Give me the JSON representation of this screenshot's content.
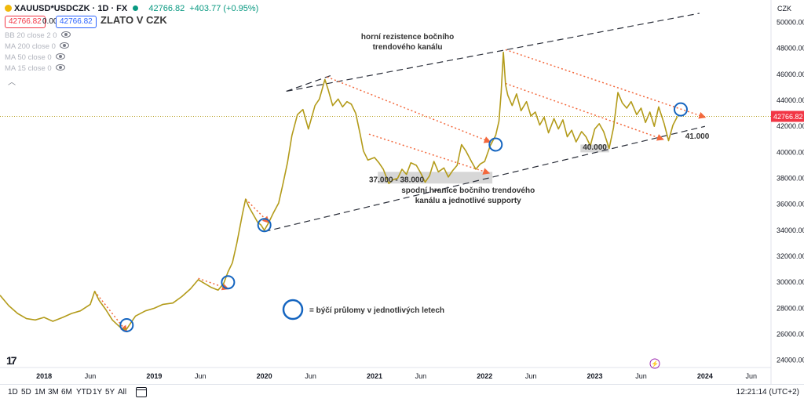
{
  "header": {
    "symbol": "XAUUSD*USDCZK · 1D · FX",
    "last_price": "42766.82",
    "change": "+403.77 (+0.95%)"
  },
  "price_boxes": {
    "sell": "42766.82",
    "spread": "0.00",
    "buy": "42766.82"
  },
  "indicators": [
    {
      "label": "BB 20 close 2 0"
    },
    {
      "label": "MA 200 close 0"
    },
    {
      "label": "MA 50 close 0"
    },
    {
      "label": "MA 15 close 0"
    }
  ],
  "timeframes": [
    "1D",
    "5D",
    "1M",
    "3M",
    "6M",
    "YTD",
    "1Y",
    "5Y",
    "All"
  ],
  "clock": "12:21:14 (UTC+2)",
  "colors": {
    "price_line": "#b39b1a",
    "trend_channel": "#2a2e39",
    "resistance_arrows": "#f3683c",
    "breakout_circles": "#1565c0",
    "support_zone": "#c9c9c9",
    "last_price_marker": "#f23645"
  },
  "icons": [
    "gold-coin-icon",
    "market-open-dot-icon",
    "eye-icon",
    "chevron-up-icon",
    "calendar-icon",
    "tradingview-logo-icon",
    "lightning-icon"
  ],
  "chart_data": {
    "type": "line",
    "title": "ZLATO V CZK",
    "currency_label": "CZK",
    "ylim": [
      23500,
      51000
    ],
    "y_ticks": [
      24000,
      26000,
      28000,
      30000,
      32000,
      34000,
      36000,
      38000,
      40000,
      42000,
      44000,
      46000,
      48000,
      50000
    ],
    "y_tick_labels": [
      "24000.00",
      "26000.00",
      "28000.00",
      "30000.00",
      "32000.00",
      "34000.00",
      "36000.00",
      "38000.00",
      "40000.00",
      "42000.00",
      "44000.00",
      "46000.00",
      "48000.00",
      "50000.00"
    ],
    "last_price_label": "42766.82",
    "last_price": 42766.82,
    "x_tick_labels": [
      "2018",
      "Jun",
      "2019",
      "Jun",
      "2020",
      "Jun",
      "2021",
      "Jun",
      "2022",
      "Jun",
      "2023",
      "Jun",
      "2024",
      "Jun"
    ],
    "x_tick_dates": [
      2018.0,
      2018.42,
      2019.0,
      2019.42,
      2020.0,
      2020.42,
      2021.0,
      2021.42,
      2022.0,
      2022.42,
      2023.0,
      2023.42,
      2024.0,
      2024.42
    ],
    "xlim": [
      2017.6,
      2024.6
    ],
    "series": [
      {
        "points": [
          [
            2017.6,
            29000
          ],
          [
            2017.68,
            28200
          ],
          [
            2017.76,
            27600
          ],
          [
            2017.84,
            27200
          ],
          [
            2017.92,
            27100
          ],
          [
            2018.0,
            27300
          ],
          [
            2018.08,
            27000
          ],
          [
            2018.17,
            27300
          ],
          [
            2018.25,
            27600
          ],
          [
            2018.33,
            27800
          ],
          [
            2018.42,
            28300
          ],
          [
            2018.46,
            29300
          ],
          [
            2018.5,
            28600
          ],
          [
            2018.56,
            27900
          ],
          [
            2018.62,
            27100
          ],
          [
            2018.67,
            26700
          ],
          [
            2018.71,
            26400
          ],
          [
            2018.75,
            26400
          ],
          [
            2018.79,
            26900
          ],
          [
            2018.83,
            27400
          ],
          [
            2018.92,
            27800
          ],
          [
            2019.0,
            28000
          ],
          [
            2019.08,
            28300
          ],
          [
            2019.17,
            28400
          ],
          [
            2019.25,
            28900
          ],
          [
            2019.33,
            29500
          ],
          [
            2019.4,
            30200
          ],
          [
            2019.46,
            29900
          ],
          [
            2019.52,
            29600
          ],
          [
            2019.58,
            29400
          ],
          [
            2019.63,
            29900
          ],
          [
            2019.67,
            30800
          ],
          [
            2019.71,
            31500
          ],
          [
            2019.75,
            33000
          ],
          [
            2019.8,
            35200
          ],
          [
            2019.83,
            36400
          ],
          [
            2019.86,
            35800
          ],
          [
            2019.9,
            35200
          ],
          [
            2019.94,
            34600
          ],
          [
            2019.97,
            34400
          ],
          [
            2020.0,
            34000
          ],
          [
            2020.04,
            34600
          ],
          [
            2020.08,
            35300
          ],
          [
            2020.13,
            36100
          ],
          [
            2020.17,
            37600
          ],
          [
            2020.21,
            39200
          ],
          [
            2020.25,
            41300
          ],
          [
            2020.3,
            42900
          ],
          [
            2020.35,
            43300
          ],
          [
            2020.4,
            41800
          ],
          [
            2020.46,
            43600
          ],
          [
            2020.5,
            44100
          ],
          [
            2020.55,
            45600
          ],
          [
            2020.58,
            44800
          ],
          [
            2020.62,
            43600
          ],
          [
            2020.67,
            44100
          ],
          [
            2020.71,
            43500
          ],
          [
            2020.75,
            43900
          ],
          [
            2020.79,
            43700
          ],
          [
            2020.83,
            43000
          ],
          [
            2020.87,
            41400
          ],
          [
            2020.9,
            40100
          ],
          [
            2020.94,
            39400
          ],
          [
            2021.0,
            39600
          ],
          [
            2021.04,
            39200
          ],
          [
            2021.08,
            38700
          ],
          [
            2021.13,
            37600
          ],
          [
            2021.17,
            37900
          ],
          [
            2021.21,
            38000
          ],
          [
            2021.25,
            38700
          ],
          [
            2021.29,
            38300
          ],
          [
            2021.33,
            39200
          ],
          [
            2021.38,
            39000
          ],
          [
            2021.42,
            38400
          ],
          [
            2021.46,
            37700
          ],
          [
            2021.5,
            38200
          ],
          [
            2021.54,
            39300
          ],
          [
            2021.58,
            38500
          ],
          [
            2021.63,
            38800
          ],
          [
            2021.67,
            38100
          ],
          [
            2021.71,
            38600
          ],
          [
            2021.75,
            39000
          ],
          [
            2021.79,
            40600
          ],
          [
            2021.83,
            40100
          ],
          [
            2021.88,
            39300
          ],
          [
            2021.92,
            38700
          ],
          [
            2021.96,
            39100
          ],
          [
            2022.0,
            39300
          ],
          [
            2022.05,
            40500
          ],
          [
            2022.1,
            41300
          ],
          [
            2022.13,
            42400
          ],
          [
            2022.15,
            44600
          ],
          [
            2022.17,
            47700
          ],
          [
            2022.19,
            45200
          ],
          [
            2022.21,
            44400
          ],
          [
            2022.25,
            43600
          ],
          [
            2022.29,
            44500
          ],
          [
            2022.33,
            43200
          ],
          [
            2022.38,
            43900
          ],
          [
            2022.42,
            42800
          ],
          [
            2022.46,
            43100
          ],
          [
            2022.5,
            42100
          ],
          [
            2022.54,
            42700
          ],
          [
            2022.58,
            41500
          ],
          [
            2022.63,
            42600
          ],
          [
            2022.67,
            41800
          ],
          [
            2022.71,
            42500
          ],
          [
            2022.75,
            41200
          ],
          [
            2022.79,
            41700
          ],
          [
            2022.83,
            40800
          ],
          [
            2022.88,
            41600
          ],
          [
            2022.92,
            41200
          ],
          [
            2022.96,
            40500
          ],
          [
            2023.0,
            41800
          ],
          [
            2023.04,
            42200
          ],
          [
            2023.08,
            41600
          ],
          [
            2023.13,
            40300
          ],
          [
            2023.17,
            41900
          ],
          [
            2023.21,
            44600
          ],
          [
            2023.25,
            43800
          ],
          [
            2023.29,
            43400
          ],
          [
            2023.33,
            43900
          ],
          [
            2023.38,
            42900
          ],
          [
            2023.42,
            43400
          ],
          [
            2023.46,
            42300
          ],
          [
            2023.5,
            43100
          ],
          [
            2023.54,
            42000
          ],
          [
            2023.58,
            43500
          ],
          [
            2023.63,
            42200
          ],
          [
            2023.67,
            40900
          ],
          [
            2023.71,
            42100
          ],
          [
            2023.75,
            42766.82
          ]
        ]
      }
    ],
    "annotations": [
      {
        "text": "horní rezistence bočního trendového kanálu",
        "lines": [
          "horní rezistence bočního",
          "trendového kanálu"
        ],
        "anchor": [
          2021.3,
          48700
        ]
      },
      {
        "text": "spodní hranice bočního trendového kanálu a jednotlivé supporty",
        "lines": [
          "spodní hranice bočního trendového",
          "kanálu a jednotlivé supporty"
        ],
        "anchor": [
          2021.85,
          36900
        ]
      },
      {
        "text": "37.000 - 38.000",
        "anchor": [
          2021.2,
          37700
        ]
      },
      {
        "text": "40.000",
        "anchor": [
          2023.0,
          40200
        ]
      },
      {
        "text": "41.000",
        "anchor": [
          2023.93,
          41050
        ]
      },
      {
        "text": "= býčí průlomy v jednotlivých letech",
        "legend": true
      }
    ],
    "trend_channel": {
      "upper": [
        [
          2020.2,
          44700
        ],
        [
          2023.95,
          50700
        ]
      ],
      "lower": [
        [
          2020.0,
          33900
        ],
        [
          2024.0,
          42000
        ]
      ],
      "top_segment": [
        [
          2020.2,
          44700
        ],
        [
          2020.6,
          45900
        ]
      ]
    },
    "resistance_lines": [
      [
        [
          2018.46,
          29300
        ],
        [
          2018.75,
          26200
        ]
      ],
      [
        [
          2019.4,
          30300
        ],
        [
          2019.67,
          29500
        ]
      ],
      [
        [
          2019.83,
          36400
        ],
        [
          2020.04,
          34600
        ]
      ],
      [
        [
          2020.57,
          45800
        ],
        [
          2022.05,
          40800
        ]
      ],
      [
        [
          2020.95,
          41400
        ],
        [
          2022.04,
          38400
        ]
      ],
      [
        [
          2022.19,
          47900
        ],
        [
          2024.0,
          42700
        ]
      ],
      [
        [
          2022.19,
          45300
        ],
        [
          2023.62,
          41000
        ]
      ]
    ],
    "support_zones": [
      {
        "from": [
          2021.03,
          37600
        ],
        "to": [
          2022.07,
          38500
        ]
      },
      {
        "from": [
          2022.87,
          40000
        ],
        "to": [
          2023.13,
          40600
        ]
      }
    ],
    "breakout_circles": [
      [
        2018.75,
        26700
      ],
      [
        2019.67,
        30000
      ],
      [
        2020.0,
        34400
      ],
      [
        2022.1,
        40600
      ],
      [
        2023.78,
        43300
      ]
    ]
  }
}
